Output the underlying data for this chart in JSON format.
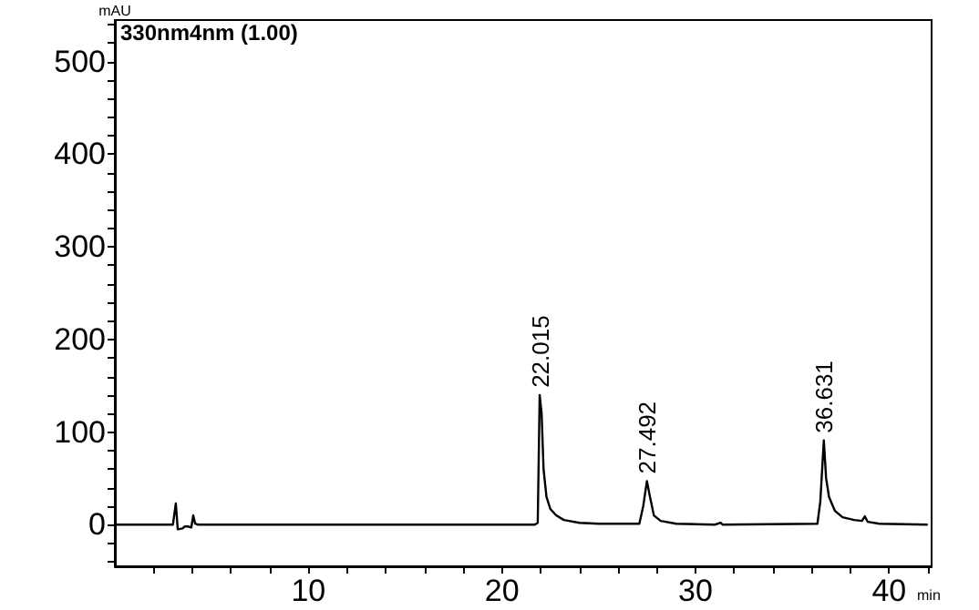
{
  "chart_data": {
    "type": "line",
    "xlabel": "min",
    "ylabel": "mAU",
    "color": "#000000",
    "grid": false,
    "marker": "none",
    "line_style": "solid",
    "annotations": [
      "330nm4nm (1.00)",
      {
        "text": "22.015",
        "x": 22.015,
        "y": 140
      },
      {
        "text": "27.492",
        "x": 27.492,
        "y": 47
      },
      {
        "text": "36.631",
        "x": 36.631,
        "y": 91
      }
    ],
    "x": [
      0,
      3.0,
      3.15,
      3.25,
      3.5,
      3.6,
      3.8,
      3.95,
      4.05,
      4.15,
      4.3,
      21.7,
      21.85,
      21.95,
      22.05,
      22.15,
      22.3,
      22.5,
      22.8,
      23.2,
      24,
      25,
      27.1,
      27.3,
      27.492,
      27.65,
      27.85,
      28.2,
      29,
      31,
      31.3,
      31.4,
      36.3,
      36.45,
      36.631,
      36.75,
      36.9,
      37.2,
      37.6,
      38.2,
      38.6,
      38.75,
      38.9,
      39.5,
      42
    ],
    "values": [
      0,
      0,
      23,
      -5,
      -4,
      -2,
      -2,
      -3,
      10,
      1,
      0,
      0,
      2,
      140,
      120,
      60,
      30,
      17,
      10,
      5,
      2,
      1,
      1,
      20,
      47,
      30,
      10,
      4,
      1,
      0,
      2,
      0,
      1,
      25,
      91,
      50,
      30,
      15,
      8,
      5,
      4,
      9,
      3,
      1,
      0
    ],
    "xlim": [
      0,
      42.2
    ],
    "ylim": [
      -45,
      545
    ],
    "xticks": [
      {
        "value": 2,
        "label": null
      },
      {
        "value": 4,
        "label": null
      },
      {
        "value": 6,
        "label": null
      },
      {
        "value": 8,
        "label": null
      },
      10,
      {
        "value": 12,
        "label": null
      },
      {
        "value": 14,
        "label": null
      },
      {
        "value": 16,
        "label": null
      },
      {
        "value": 18,
        "label": null
      },
      20,
      {
        "value": 22,
        "label": null
      },
      {
        "value": 24,
        "label": null
      },
      {
        "value": 26,
        "label": null
      },
      {
        "value": 28,
        "label": null
      },
      30,
      {
        "value": 32,
        "label": null
      },
      {
        "value": 34,
        "label": null
      },
      {
        "value": 36,
        "label": null
      },
      {
        "value": 38,
        "label": null
      },
      40,
      {
        "value": 42,
        "label": null
      }
    ],
    "yticks": [
      {
        "value": -40,
        "label": null
      },
      {
        "value": -20,
        "label": null
      },
      0,
      {
        "value": 20,
        "label": null
      },
      {
        "value": 40,
        "label": null
      },
      {
        "value": 60,
        "label": null
      },
      {
        "value": 80,
        "label": null
      },
      100,
      {
        "value": 120,
        "label": null
      },
      {
        "value": 140,
        "label": null
      },
      {
        "value": 160,
        "label": null
      },
      {
        "value": 180,
        "label": null
      },
      200,
      {
        "value": 220,
        "label": null
      },
      {
        "value": 240,
        "label": null
      },
      {
        "value": 260,
        "label": null
      },
      {
        "value": 280,
        "label": null
      },
      300,
      {
        "value": 320,
        "label": null
      },
      {
        "value": 340,
        "label": null
      },
      {
        "value": 360,
        "label": null
      },
      {
        "value": 380,
        "label": null
      },
      400,
      {
        "value": 420,
        "label": null
      },
      {
        "value": 440,
        "label": null
      },
      {
        "value": 460,
        "label": null
      },
      {
        "value": 480,
        "label": null
      },
      500,
      {
        "value": 520,
        "label": null
      },
      {
        "value": 540,
        "label": null
      }
    ]
  }
}
